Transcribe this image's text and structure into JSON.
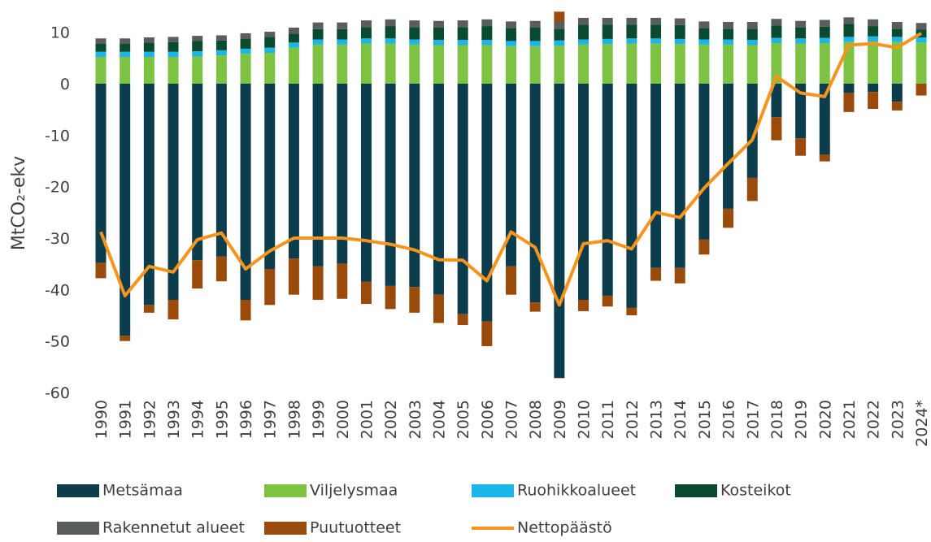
{
  "chart_data": {
    "type": "bar",
    "stacked": true,
    "y_label": "MtCO₂-ekv",
    "categories": [
      "1990",
      "1991",
      "1992",
      "1993",
      "1994",
      "1995",
      "1996",
      "1997",
      "1998",
      "1999",
      "2000",
      "2001",
      "2002",
      "2003",
      "2004",
      "2005",
      "2006",
      "2007",
      "2008",
      "2009",
      "2010",
      "2011",
      "2012",
      "2013",
      "2014",
      "2015",
      "2016",
      "2017",
      "2018",
      "2019",
      "2020",
      "2021",
      "2022",
      "2023",
      "2024*"
    ],
    "ylim": [
      -60,
      14
    ],
    "yticks": [
      -60,
      -50,
      -40,
      -30,
      -20,
      -10,
      0,
      10
    ],
    "series": [
      {
        "name": "Metsämaa",
        "color": "#0b3d4c",
        "values": [
          -34.8,
          -49,
          -43,
          -42,
          -34.3,
          -33.6,
          -42,
          -36,
          -34,
          -35.5,
          -35,
          -38.5,
          -39.3,
          -39.5,
          -41,
          -44.8,
          -46.2,
          -35.5,
          -42.5,
          -57.2,
          -42,
          -41.2,
          -43.5,
          -35.8,
          -35.8,
          -30.3,
          -24.3,
          -18.3,
          -6.5,
          -10.6,
          -13.8,
          -1.8,
          -1.6,
          -3.5,
          0
        ]
      },
      {
        "name": "Viljelysmaa",
        "color": "#7dc242",
        "values": [
          5.2,
          5.2,
          5.2,
          5.2,
          5.3,
          5.5,
          5.8,
          6.0,
          7.0,
          7.6,
          7.6,
          7.8,
          7.8,
          7.6,
          7.5,
          7.5,
          7.5,
          7.3,
          7.3,
          7.4,
          7.6,
          7.7,
          7.8,
          7.8,
          7.7,
          7.6,
          7.6,
          7.5,
          7.9,
          7.8,
          7.9,
          8.1,
          8.2,
          8.1,
          8.0
        ]
      },
      {
        "name": "Ruohikkoalueet",
        "color": "#1bb5e8",
        "values": [
          1,
          1,
          1,
          1,
          1,
          1,
          1,
          1,
          1,
          1,
          1,
          1,
          1,
          1,
          1,
          1,
          1,
          1,
          1,
          1,
          1,
          1,
          1,
          1,
          1,
          1,
          1,
          1,
          1,
          1,
          1,
          1,
          1,
          1,
          1
        ]
      },
      {
        "name": "Kosteikot",
        "color": "#0a4a2e",
        "values": [
          1.6,
          1.6,
          1.8,
          1.9,
          2.0,
          1.9,
          2.0,
          2.1,
          1.7,
          2.0,
          2.0,
          2.2,
          2.4,
          2.4,
          2.4,
          2.5,
          2.7,
          2.5,
          2.6,
          2.3,
          2.9,
          2.8,
          2.7,
          2.7,
          2.7,
          2.2,
          2.1,
          2.2,
          2.4,
          2.1,
          2.2,
          2.5,
          2.0,
          1.6,
          1.5
        ]
      },
      {
        "name": "Rakennetut alueet",
        "color": "#5a5d5e",
        "values": [
          1,
          1,
          1,
          1,
          1,
          1,
          1,
          1,
          1.2,
          1.3,
          1.3,
          1.3,
          1.3,
          1.3,
          1.3,
          1.3,
          1.3,
          1.3,
          1.3,
          1.3,
          1.3,
          1.3,
          1.3,
          1.3,
          1.3,
          1.3,
          1.3,
          1.3,
          1.3,
          1.3,
          1.3,
          1.3,
          1.3,
          1.3,
          1.3
        ]
      },
      {
        "name": "Puutuotteet",
        "color": "#9a4a0a",
        "values": [
          -3,
          -1,
          -1.5,
          -3.8,
          -5.5,
          -4.8,
          -4,
          -7,
          -7,
          -6.5,
          -6.8,
          -4.3,
          -4.5,
          -5,
          -5.5,
          -2.1,
          -4.8,
          -5.5,
          -1.8,
          2,
          -2.2,
          -2.1,
          -1.5,
          -2.5,
          -3,
          -2.9,
          -3.7,
          -4.5,
          -4.5,
          -3.4,
          -1.3,
          -3.7,
          -3.3,
          -1.7,
          -2.3
        ]
      },
      {
        "name": "Nettopäästö",
        "color": "#f7941d",
        "kind": "line",
        "values": [
          -28.8,
          -41.2,
          -35.5,
          -36.6,
          -30.3,
          -29,
          -36,
          -32.5,
          -30,
          -30,
          -30,
          -30.5,
          -31.2,
          -32.3,
          -34.2,
          -34.3,
          -38.3,
          -28.8,
          -31.8,
          -43,
          -31.1,
          -30.5,
          -32.1,
          -25,
          -26,
          -20.3,
          -15.5,
          -10.9,
          1.4,
          -1.8,
          -2.5,
          7.5,
          7.8,
          7,
          9.8
        ]
      }
    ]
  }
}
